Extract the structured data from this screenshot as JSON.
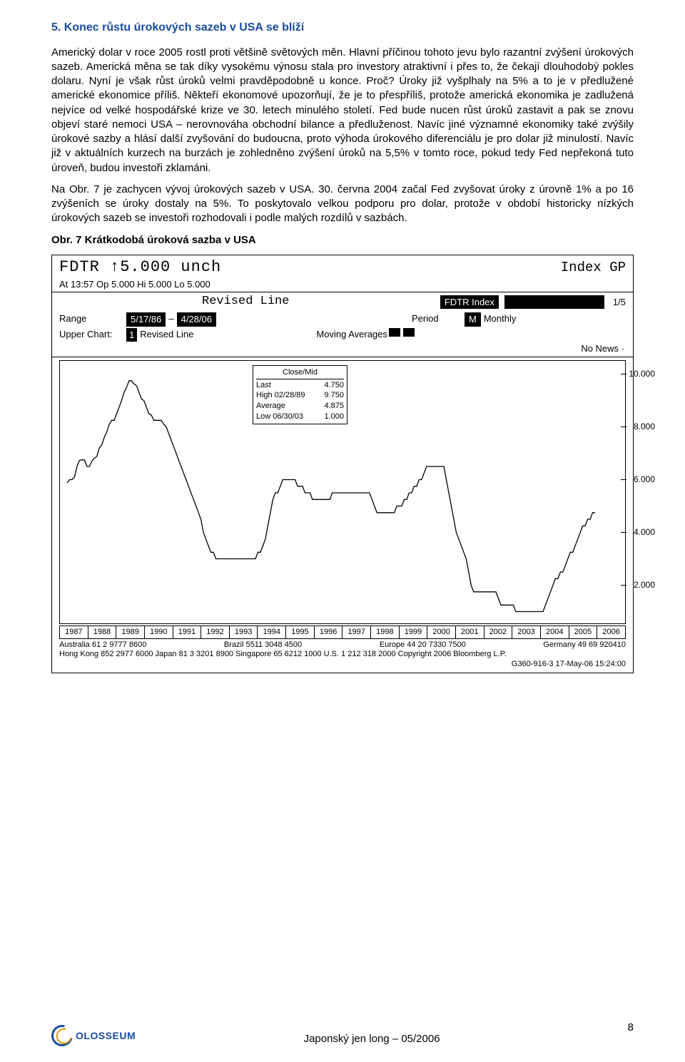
{
  "heading": "5. Konec růstu úrokových sazeb v USA se blíží",
  "para1": "Americký dolar v roce 2005 rostl proti většině světových měn. Hlavní příčinou tohoto jevu bylo razantní zvýšení úrokových sazeb. Americká měna se tak díky vysokému výnosu stala pro investory atraktivní i přes to, že čekají dlouhodobý pokles dolaru. Nyní je však růst úroků velmi pravděpodobně u konce. Proč? Úroky již vyšplhaly na 5% a to je v předlužené americké ekonomice příliš. Někteří ekonomové upozorňují, že je to přespříliš, protože americká ekonomika je zadlužená nejvíce od velké hospodářské krize ve 30. letech minulého století. Fed bude nucen růst úroků zastavit a pak se znovu objeví staré nemoci USA – nerovnováha obchodní bilance a předluženost. Navíc jiné významné ekonomiky také zvýšily úrokové sazby a hlásí další zvyšování do budoucna, proto výhoda úrokového diferenciálu je pro dolar již minulostí. Navíc již v aktuálních kurzech na burzách je zohledněno zvýšení úroků na 5,5% v tomto roce, pokud tedy Fed nepřekoná tuto úroveň, budou investoři zklamáni.",
  "para2": "Na Obr.  7 je zachycen vývoj úrokových sazeb v USA. 30. června 2004 začal Fed zvyšovat úroky z úrovně 1% a po 16 zvýšeních se úroky dostaly na 5%. To poskytovalo velkou podporu pro dolar, protože v období historicky nízkých úrokových sazeb se investoři rozhodovali i podle malých rozdílů v sazbách.",
  "caption": "Obr.  7 Krátkodobá úroková sazba v USA",
  "chart": {
    "ticker_line": "FDTR  ↑5.000 unch",
    "idx_gp": "Index  GP",
    "ohlc": "At 13:57  Op 5.000 Hi 5.000 Lo 5.000",
    "revised_title": "Revised Line",
    "fdtr_index": "FDTR Index",
    "page_frac": "1/5",
    "range_label": "Range",
    "range_from": "5/17/86",
    "range_dash": " – ",
    "range_to": "4/28/06",
    "period_label": "Period",
    "period_val": "M",
    "period_monthly": " Monthly",
    "upper_label": "Upper Chart:",
    "upper_num": "1",
    "upper_rest": " Revised Line",
    "moving_avg": "Moving Averages",
    "no_news": "No News   ·",
    "stats_title": "Close/Mid",
    "stats": [
      [
        "Last",
        "4.750"
      ],
      [
        "High  02/28/89",
        "9.750"
      ],
      [
        "Average",
        "4.875"
      ],
      [
        "Low  06/30/03",
        "1.000"
      ]
    ],
    "yticks": [
      {
        "v": 10.0,
        "label": "10.000"
      },
      {
        "v": 8.0,
        "label": "8.000"
      },
      {
        "v": 6.0,
        "label": "6.000"
      },
      {
        "v": 4.0,
        "label": "4.000"
      },
      {
        "v": 2.0,
        "label": "2.000"
      }
    ],
    "ylim": [
      0.5,
      10.5
    ],
    "xlabels": [
      "1987",
      "1988",
      "1989",
      "1990",
      "1991",
      "1992",
      "1993",
      "1994",
      "1995",
      "1996",
      "1997",
      "1998",
      "1999",
      "2000",
      "2001",
      "2002",
      "2003",
      "2004",
      "2005",
      "2006"
    ],
    "series": [
      [
        0.0,
        5.88
      ],
      [
        0.02,
        6.0
      ],
      [
        0.05,
        6.0
      ],
      [
        0.07,
        6.1
      ],
      [
        0.1,
        6.5
      ],
      [
        0.12,
        6.73
      ],
      [
        0.15,
        6.75
      ],
      [
        0.17,
        6.75
      ],
      [
        0.19,
        6.5
      ],
      [
        0.22,
        6.5
      ],
      [
        0.24,
        6.7
      ],
      [
        0.27,
        6.81
      ],
      [
        0.29,
        6.88
      ],
      [
        0.32,
        7.2
      ],
      [
        0.34,
        7.31
      ],
      [
        0.37,
        7.6
      ],
      [
        0.39,
        7.8
      ],
      [
        0.41,
        8.1
      ],
      [
        0.44,
        8.25
      ],
      [
        0.46,
        8.25
      ],
      [
        0.49,
        8.5
      ],
      [
        0.51,
        8.75
      ],
      [
        0.53,
        9.0
      ],
      [
        0.56,
        9.31
      ],
      [
        0.58,
        9.5
      ],
      [
        0.61,
        9.75
      ],
      [
        0.63,
        9.75
      ],
      [
        0.66,
        9.63
      ],
      [
        0.68,
        9.56
      ],
      [
        0.7,
        9.31
      ],
      [
        0.73,
        9.06
      ],
      [
        0.75,
        9.0
      ],
      [
        0.78,
        8.75
      ],
      [
        0.8,
        8.5
      ],
      [
        0.82,
        8.45
      ],
      [
        0.85,
        8.25
      ],
      [
        0.87,
        8.25
      ],
      [
        0.9,
        8.25
      ],
      [
        0.92,
        8.25
      ],
      [
        0.95,
        8.1
      ],
      [
        0.97,
        8.0
      ],
      [
        0.99,
        7.75
      ],
      [
        1.02,
        7.5
      ],
      [
        1.04,
        7.25
      ],
      [
        1.07,
        7.0
      ],
      [
        1.09,
        6.75
      ],
      [
        1.11,
        6.5
      ],
      [
        1.14,
        6.25
      ],
      [
        1.16,
        6.0
      ],
      [
        1.19,
        5.75
      ],
      [
        1.21,
        5.5
      ],
      [
        1.24,
        5.25
      ],
      [
        1.26,
        5.0
      ],
      [
        1.28,
        4.75
      ],
      [
        1.31,
        4.5
      ],
      [
        1.33,
        4.0
      ],
      [
        1.36,
        3.75
      ],
      [
        1.38,
        3.5
      ],
      [
        1.4,
        3.25
      ],
      [
        1.43,
        3.25
      ],
      [
        1.45,
        3.0
      ],
      [
        1.48,
        3.0
      ],
      [
        1.5,
        3.0
      ],
      [
        1.53,
        3.0
      ],
      [
        1.55,
        3.0
      ],
      [
        1.57,
        3.0
      ],
      [
        1.6,
        3.0
      ],
      [
        1.62,
        3.0
      ],
      [
        1.65,
        3.0
      ],
      [
        1.67,
        3.0
      ],
      [
        1.69,
        3.0
      ],
      [
        1.72,
        3.0
      ],
      [
        1.74,
        3.0
      ],
      [
        1.77,
        3.0
      ],
      [
        1.79,
        3.0
      ],
      [
        1.82,
        3.0
      ],
      [
        1.84,
        3.0
      ],
      [
        1.86,
        3.25
      ],
      [
        1.89,
        3.25
      ],
      [
        1.91,
        3.5
      ],
      [
        1.94,
        3.75
      ],
      [
        1.96,
        4.25
      ],
      [
        1.98,
        4.75
      ],
      [
        2.01,
        5.25
      ],
      [
        2.03,
        5.5
      ],
      [
        2.06,
        5.5
      ],
      [
        2.08,
        5.75
      ],
      [
        2.11,
        6.0
      ],
      [
        2.13,
        6.0
      ],
      [
        2.15,
        6.0
      ],
      [
        2.18,
        6.0
      ],
      [
        2.2,
        6.0
      ],
      [
        2.23,
        6.0
      ],
      [
        2.25,
        5.75
      ],
      [
        2.27,
        5.75
      ],
      [
        2.3,
        5.75
      ],
      [
        2.32,
        5.5
      ],
      [
        2.35,
        5.5
      ],
      [
        2.37,
        5.5
      ],
      [
        2.4,
        5.25
      ],
      [
        2.42,
        5.25
      ],
      [
        2.44,
        5.25
      ],
      [
        2.47,
        5.25
      ],
      [
        2.49,
        5.25
      ],
      [
        2.52,
        5.25
      ],
      [
        2.54,
        5.25
      ],
      [
        2.57,
        5.25
      ],
      [
        2.59,
        5.5
      ],
      [
        2.61,
        5.5
      ],
      [
        2.64,
        5.5
      ],
      [
        2.66,
        5.5
      ],
      [
        2.69,
        5.5
      ],
      [
        2.71,
        5.5
      ],
      [
        2.73,
        5.5
      ],
      [
        2.76,
        5.5
      ],
      [
        2.78,
        5.5
      ],
      [
        2.81,
        5.5
      ],
      [
        2.83,
        5.5
      ],
      [
        2.86,
        5.5
      ],
      [
        2.88,
        5.5
      ],
      [
        2.9,
        5.5
      ],
      [
        2.93,
        5.5
      ],
      [
        2.95,
        5.5
      ],
      [
        2.98,
        5.25
      ],
      [
        3.0,
        5.0
      ],
      [
        3.02,
        4.75
      ],
      [
        3.05,
        4.75
      ],
      [
        3.07,
        4.75
      ],
      [
        3.1,
        4.75
      ],
      [
        3.12,
        4.75
      ],
      [
        3.15,
        4.75
      ],
      [
        3.17,
        4.75
      ],
      [
        3.19,
        4.75
      ],
      [
        3.22,
        5.0
      ],
      [
        3.24,
        5.0
      ],
      [
        3.27,
        5.0
      ],
      [
        3.29,
        5.25
      ],
      [
        3.31,
        5.25
      ],
      [
        3.34,
        5.5
      ],
      [
        3.36,
        5.5
      ],
      [
        3.39,
        5.75
      ],
      [
        3.41,
        5.75
      ],
      [
        3.44,
        6.0
      ],
      [
        3.46,
        6.0
      ],
      [
        3.48,
        6.25
      ],
      [
        3.51,
        6.5
      ],
      [
        3.53,
        6.5
      ],
      [
        3.56,
        6.5
      ],
      [
        3.58,
        6.5
      ],
      [
        3.61,
        6.5
      ],
      [
        3.63,
        6.5
      ],
      [
        3.65,
        6.5
      ],
      [
        3.68,
        6.5
      ],
      [
        3.7,
        6.0
      ],
      [
        3.73,
        5.5
      ],
      [
        3.75,
        5.0
      ],
      [
        3.77,
        4.5
      ],
      [
        3.8,
        4.0
      ],
      [
        3.82,
        3.75
      ],
      [
        3.85,
        3.5
      ],
      [
        3.87,
        3.25
      ],
      [
        3.9,
        3.0
      ],
      [
        3.92,
        2.5
      ],
      [
        3.94,
        2.0
      ],
      [
        3.97,
        1.75
      ],
      [
        3.99,
        1.75
      ],
      [
        4.02,
        1.75
      ],
      [
        4.04,
        1.75
      ],
      [
        4.06,
        1.75
      ],
      [
        4.09,
        1.75
      ],
      [
        4.11,
        1.75
      ],
      [
        4.14,
        1.75
      ],
      [
        4.16,
        1.75
      ],
      [
        4.19,
        1.75
      ],
      [
        4.21,
        1.5
      ],
      [
        4.23,
        1.25
      ],
      [
        4.26,
        1.25
      ],
      [
        4.28,
        1.25
      ],
      [
        4.31,
        1.25
      ],
      [
        4.33,
        1.25
      ],
      [
        4.36,
        1.25
      ],
      [
        4.38,
        1.0
      ],
      [
        4.4,
        1.0
      ],
      [
        4.43,
        1.0
      ],
      [
        4.45,
        1.0
      ],
      [
        4.48,
        1.0
      ],
      [
        4.5,
        1.0
      ],
      [
        4.52,
        1.0
      ],
      [
        4.55,
        1.0
      ],
      [
        4.57,
        1.0
      ],
      [
        4.6,
        1.0
      ],
      [
        4.62,
        1.0
      ],
      [
        4.65,
        1.0
      ],
      [
        4.67,
        1.25
      ],
      [
        4.69,
        1.5
      ],
      [
        4.72,
        1.75
      ],
      [
        4.74,
        2.0
      ],
      [
        4.77,
        2.25
      ],
      [
        4.79,
        2.25
      ],
      [
        4.81,
        2.5
      ],
      [
        4.84,
        2.5
      ],
      [
        4.86,
        2.75
      ],
      [
        4.89,
        3.0
      ],
      [
        4.91,
        3.25
      ],
      [
        4.94,
        3.25
      ],
      [
        4.96,
        3.5
      ],
      [
        4.98,
        3.75
      ],
      [
        5.01,
        4.0
      ],
      [
        5.03,
        4.25
      ],
      [
        5.06,
        4.25
      ],
      [
        5.08,
        4.5
      ],
      [
        5.1,
        4.5
      ],
      [
        5.13,
        4.75
      ],
      [
        5.15,
        4.75
      ]
    ],
    "credits_l1_left": "Australia 61 2 9777 8600",
    "credits_l1_mid": "Brazil 5511 3048 4500",
    "credits_l1_r1": "Europe 44 20 7330 7500",
    "credits_l1_r2": "Germany 49 69 920410",
    "credits_l2": "Hong Kong 852 2977 6000 Japan 81 3 3201 8900 Singapore 65 6212 1000 U.S. 1 212 318 2000 Copyright 2006 Bloomberg L.P.",
    "credits_l3": "G360-916-3 17-May-06 15:24:00"
  },
  "footer": {
    "logo_text": "OLOSSEUM",
    "center": "Japonský jen long – 05/2006",
    "page": "8"
  },
  "colors": {
    "heading": "#1a4ca0",
    "link_logo": "#1a4ca0",
    "accent": "#d99a00",
    "chart_line": "#000000",
    "chart_border": "#000000",
    "bg": "#ffffff"
  }
}
